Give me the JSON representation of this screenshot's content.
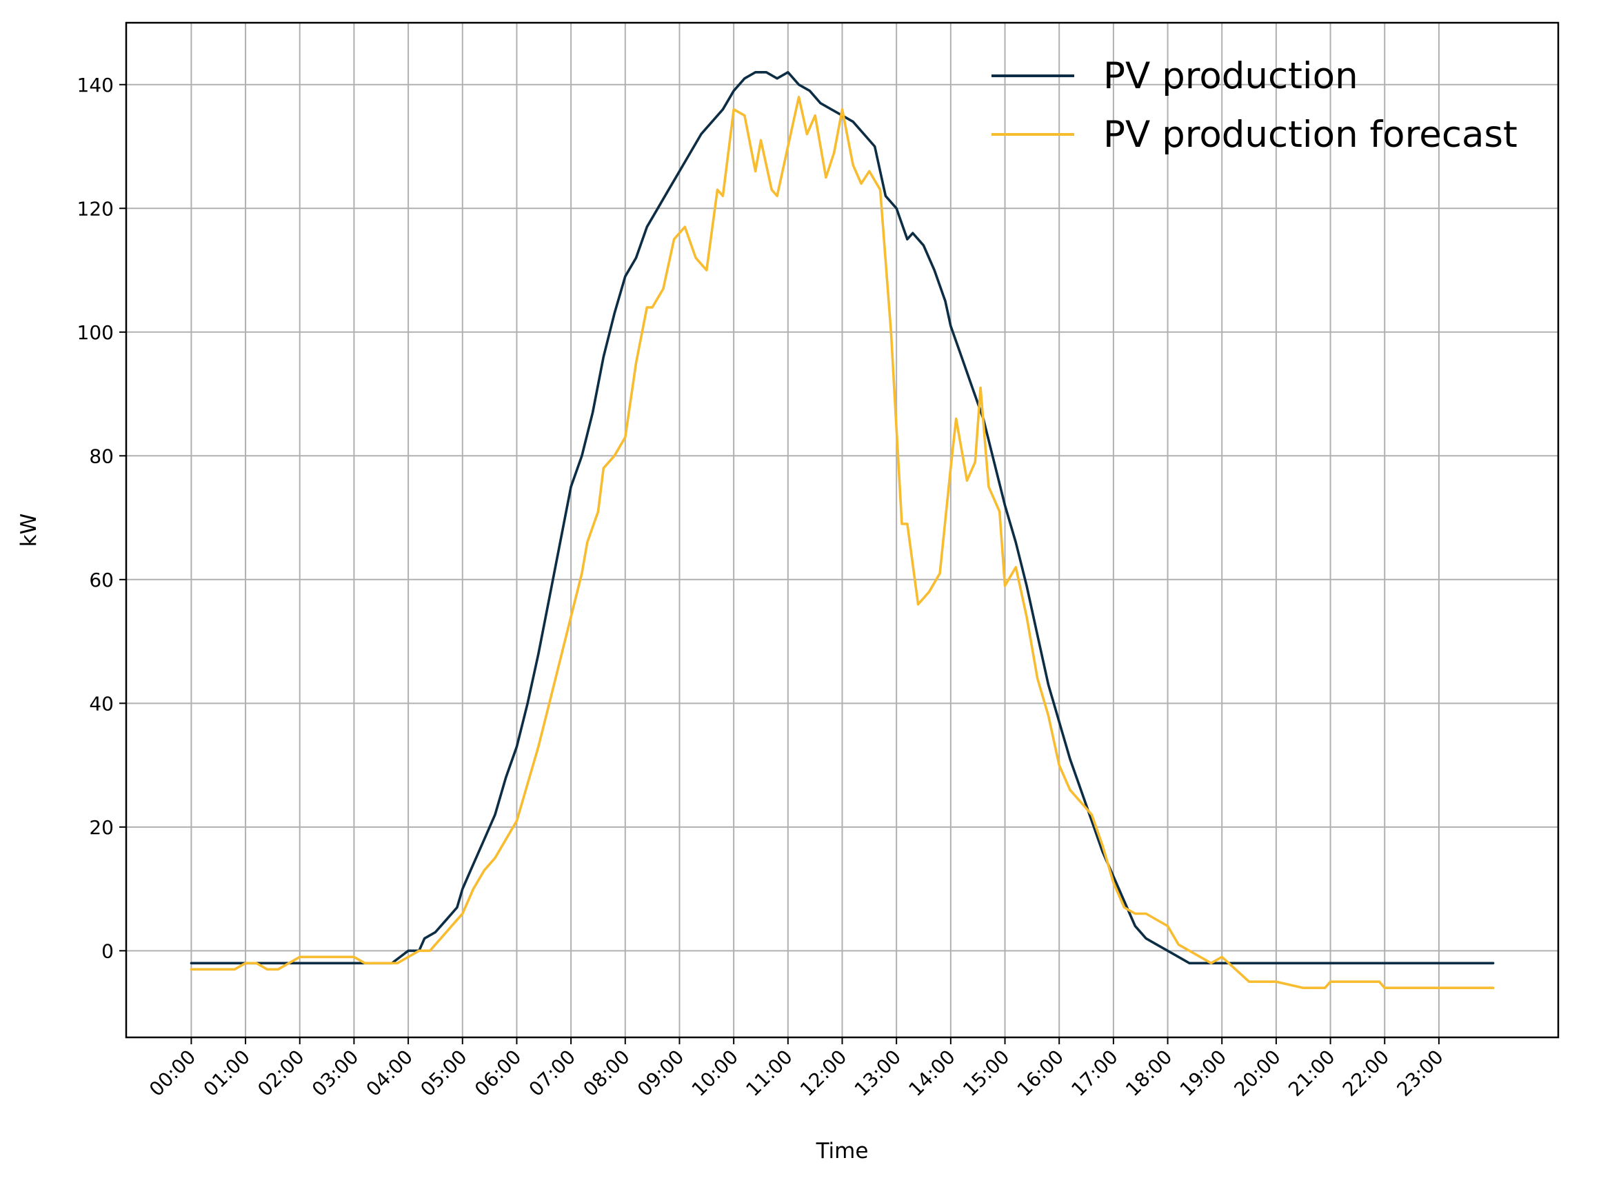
{
  "chart_data": {
    "type": "line",
    "title": "",
    "xlabel": "Time",
    "ylabel": "kW",
    "xlim": [
      -1.2,
      25.2
    ],
    "ylim": [
      -14,
      150
    ],
    "grid": true,
    "legend_position": "top-right",
    "categories": [
      "00:00",
      "01:00",
      "02:00",
      "03:00",
      "04:00",
      "05:00",
      "06:00",
      "07:00",
      "08:00",
      "09:00",
      "10:00",
      "11:00",
      "12:00",
      "13:00",
      "14:00",
      "15:00",
      "16:00",
      "17:00",
      "18:00",
      "19:00",
      "20:00",
      "21:00",
      "22:00",
      "23:00"
    ],
    "yticks": [
      0,
      20,
      40,
      60,
      80,
      100,
      120,
      140
    ],
    "series": [
      {
        "name": "PV production",
        "color": "#0c2d44",
        "x": [
          0,
          1,
          2,
          3,
          3.3,
          3.7,
          4,
          4.2,
          4.3,
          4.5,
          4.7,
          4.9,
          5,
          5.2,
          5.4,
          5.6,
          5.8,
          6,
          6.2,
          6.4,
          6.6,
          6.8,
          7,
          7.2,
          7.4,
          7.6,
          7.8,
          8,
          8.2,
          8.4,
          8.6,
          8.8,
          9,
          9.2,
          9.4,
          9.6,
          9.8,
          10,
          10.2,
          10.4,
          10.6,
          10.8,
          11,
          11.2,
          11.4,
          11.6,
          11.8,
          12,
          12.2,
          12.4,
          12.6,
          12.8,
          13,
          13.2,
          13.3,
          13.5,
          13.7,
          13.9,
          14,
          14.2,
          14.4,
          14.6,
          14.8,
          15,
          15.2,
          15.4,
          15.6,
          15.8,
          16,
          16.2,
          16.4,
          16.6,
          16.8,
          17,
          17.2,
          17.4,
          17.6,
          17.8,
          18,
          18.2,
          18.4,
          19,
          20,
          21,
          22,
          23,
          24
        ],
        "values": [
          -2,
          -2,
          -2,
          -2,
          -2,
          -2,
          0,
          0,
          2,
          3,
          5,
          7,
          10,
          14,
          18,
          22,
          28,
          33,
          40,
          48,
          57,
          66,
          75,
          80,
          87,
          96,
          103,
          109,
          112,
          117,
          120,
          123,
          126,
          129,
          132,
          134,
          136,
          139,
          141,
          142,
          142,
          141,
          142,
          140,
          139,
          137,
          136,
          135,
          134,
          132,
          130,
          122,
          120,
          115,
          116,
          114,
          110,
          105,
          101,
          96,
          91,
          86,
          79,
          72,
          66,
          59,
          51,
          43,
          37,
          31,
          26,
          21,
          16,
          12,
          8,
          4,
          2,
          1,
          0,
          -1,
          -2,
          -2,
          -2,
          -2,
          -2,
          -2,
          -2
        ]
      },
      {
        "name": "PV production forecast",
        "color": "#f7bc2f",
        "x": [
          0,
          0.8,
          1,
          1.2,
          1.4,
          1.6,
          1.8,
          2,
          2.5,
          3,
          3.2,
          3.5,
          3.8,
          4,
          4.2,
          4.4,
          4.6,
          4.8,
          5,
          5.2,
          5.4,
          5.6,
          5.8,
          6,
          6.2,
          6.4,
          6.6,
          6.8,
          7,
          7.2,
          7.3,
          7.5,
          7.6,
          7.8,
          8,
          8.2,
          8.4,
          8.5,
          8.7,
          8.9,
          9.1,
          9.3,
          9.5,
          9.7,
          9.8,
          10,
          10.2,
          10.4,
          10.5,
          10.7,
          10.8,
          11,
          11.2,
          11.35,
          11.5,
          11.7,
          11.85,
          12,
          12.2,
          12.35,
          12.5,
          12.7,
          12.9,
          13.1,
          13.2,
          13.4,
          13.6,
          13.8,
          14,
          14.1,
          14.3,
          14.45,
          14.55,
          14.7,
          14.9,
          15,
          15.2,
          15.4,
          15.6,
          15.8,
          16,
          16.2,
          16.4,
          16.6,
          16.8,
          17,
          17.2,
          17.4,
          17.6,
          17.8,
          18,
          18.2,
          18.4,
          18.6,
          18.8,
          19,
          19.5,
          19.9,
          20,
          20.5,
          20.9,
          21,
          21.5,
          21.9,
          22,
          22.5,
          23,
          24
        ],
        "values": [
          -3,
          -3,
          -2,
          -2,
          -3,
          -3,
          -2,
          -1,
          -1,
          -1,
          -2,
          -2,
          -2,
          -1,
          0,
          0,
          2,
          4,
          6,
          10,
          13,
          15,
          18,
          21,
          27,
          33,
          40,
          47,
          54,
          61,
          66,
          71,
          78,
          80,
          83,
          95,
          104,
          104,
          107,
          115,
          117,
          112,
          110,
          123,
          122,
          136,
          135,
          126,
          131,
          123,
          122,
          130,
          138,
          132,
          135,
          125,
          129,
          136,
          127,
          124,
          126,
          123,
          100,
          69,
          69,
          56,
          58,
          61,
          78,
          86,
          76,
          79,
          91,
          75,
          71,
          59,
          62,
          54,
          44,
          38,
          30,
          26,
          24,
          22,
          17,
          11,
          7,
          6,
          6,
          5,
          4,
          1,
          0,
          -1,
          -2,
          -1,
          -5,
          -5,
          -5,
          -6,
          -6,
          -5,
          -5,
          -5,
          -6,
          -6,
          -6,
          -6
        ]
      }
    ]
  }
}
